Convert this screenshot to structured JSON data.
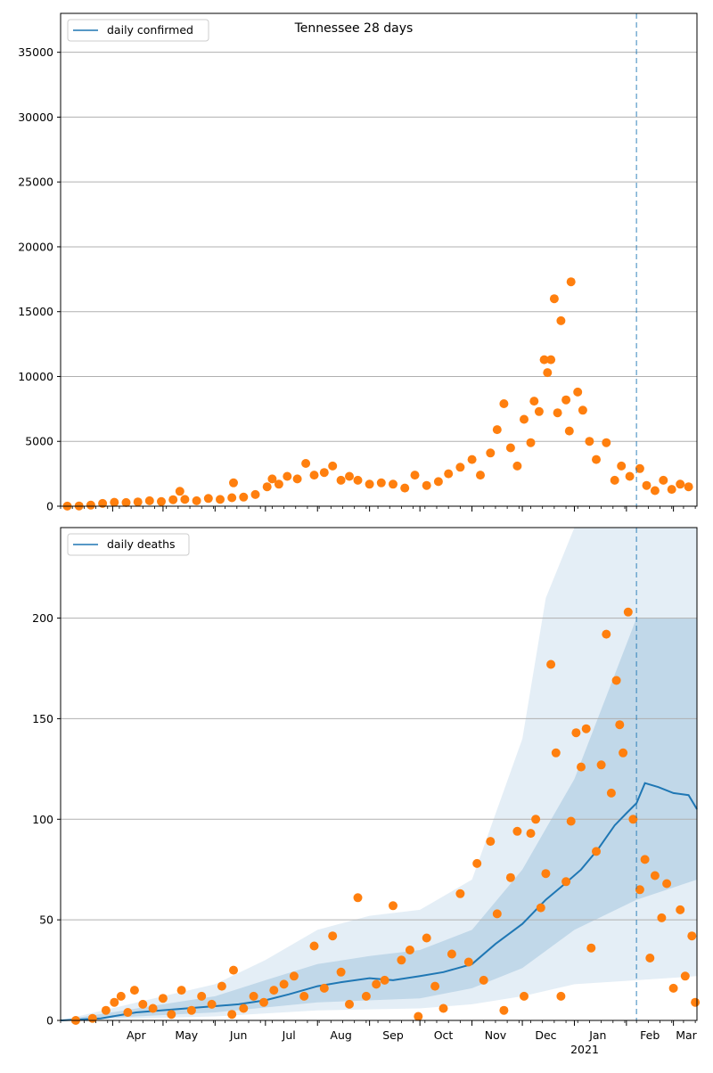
{
  "chart_data": [
    {
      "type": "scatter",
      "title": "Tennessee 28 days",
      "xlabel": "",
      "ylabel": "",
      "x_range": [
        "2020-03-01",
        "2021-03-15"
      ],
      "ylim": [
        0,
        38000
      ],
      "yticks": [
        0,
        5000,
        10000,
        15000,
        20000,
        25000,
        30000,
        35000
      ],
      "grid": "y",
      "legend": {
        "placement": "top-left",
        "label": "daily confirmed"
      },
      "divider_date": "2021-02-07",
      "colors": {
        "model": "#1f77b4",
        "observed": "#ff7f0e",
        "grid": "#b0b0b0"
      },
      "series": [
        {
          "name": "daily confirmed",
          "kind": "observed-points",
          "points": [
            [
              "2020-03-05",
              5
            ],
            [
              "2020-03-12",
              20
            ],
            [
              "2020-03-19",
              80
            ],
            [
              "2020-03-26",
              210
            ],
            [
              "2020-04-02",
              300
            ],
            [
              "2020-04-09",
              280
            ],
            [
              "2020-04-16",
              330
            ],
            [
              "2020-04-23",
              420
            ],
            [
              "2020-04-30",
              360
            ],
            [
              "2020-05-07",
              500
            ],
            [
              "2020-05-11",
              1150
            ],
            [
              "2020-05-14",
              520
            ],
            [
              "2020-05-21",
              420
            ],
            [
              "2020-05-28",
              600
            ],
            [
              "2020-06-04",
              520
            ],
            [
              "2020-06-11",
              650
            ],
            [
              "2020-06-12",
              1800
            ],
            [
              "2020-06-18",
              700
            ],
            [
              "2020-06-25",
              900
            ],
            [
              "2020-07-02",
              1500
            ],
            [
              "2020-07-05",
              2100
            ],
            [
              "2020-07-09",
              1700
            ],
            [
              "2020-07-14",
              2300
            ],
            [
              "2020-07-20",
              2100
            ],
            [
              "2020-07-25",
              3300
            ],
            [
              "2020-07-30",
              2400
            ],
            [
              "2020-08-05",
              2600
            ],
            [
              "2020-08-10",
              3100
            ],
            [
              "2020-08-15",
              2000
            ],
            [
              "2020-08-20",
              2300
            ],
            [
              "2020-08-25",
              2000
            ],
            [
              "2020-09-01",
              1700
            ],
            [
              "2020-09-08",
              1800
            ],
            [
              "2020-09-15",
              1700
            ],
            [
              "2020-09-22",
              1400
            ],
            [
              "2020-09-28",
              2400
            ],
            [
              "2020-10-05",
              1600
            ],
            [
              "2020-10-12",
              1900
            ],
            [
              "2020-10-18",
              2500
            ],
            [
              "2020-10-25",
              3000
            ],
            [
              "2020-11-01",
              3600
            ],
            [
              "2020-11-06",
              2400
            ],
            [
              "2020-11-12",
              4100
            ],
            [
              "2020-11-16",
              5900
            ],
            [
              "2020-11-20",
              7900
            ],
            [
              "2020-11-24",
              4500
            ],
            [
              "2020-11-28",
              3100
            ],
            [
              "2020-12-02",
              6700
            ],
            [
              "2020-12-06",
              4900
            ],
            [
              "2020-12-08",
              8100
            ],
            [
              "2020-12-11",
              7300
            ],
            [
              "2020-12-14",
              11300
            ],
            [
              "2020-12-16",
              10300
            ],
            [
              "2020-12-18",
              11300
            ],
            [
              "2020-12-20",
              16000
            ],
            [
              "2020-12-22",
              7200
            ],
            [
              "2020-12-24",
              14300
            ],
            [
              "2020-12-27",
              8200
            ],
            [
              "2020-12-29",
              5800
            ],
            [
              "2020-12-30",
              17300
            ],
            [
              "2021-01-03",
              8800
            ],
            [
              "2021-01-06",
              7400
            ],
            [
              "2021-01-10",
              5000
            ],
            [
              "2021-01-14",
              3600
            ],
            [
              "2021-01-20",
              4900
            ],
            [
              "2021-01-25",
              2000
            ],
            [
              "2021-01-29",
              3100
            ],
            [
              "2021-02-03",
              2300
            ],
            [
              "2021-02-09",
              2900
            ],
            [
              "2021-02-13",
              1600
            ],
            [
              "2021-02-18",
              1200
            ],
            [
              "2021-02-23",
              2000
            ],
            [
              "2021-02-28",
              1300
            ],
            [
              "2021-03-05",
              1700
            ],
            [
              "2021-03-10",
              1500
            ]
          ]
        }
      ]
    },
    {
      "type": "line",
      "title": "",
      "xlabel": "",
      "ylabel": "",
      "x_range": [
        "2020-03-01",
        "2021-03-15"
      ],
      "ylim": [
        0,
        245
      ],
      "yticks": [
        0,
        50,
        100,
        150,
        200
      ],
      "xticks": [
        "Apr",
        "May",
        "Jun",
        "Jul",
        "Aug",
        "Sep",
        "Oct",
        "Nov",
        "Dec",
        "Jan",
        "Feb",
        "Mar"
      ],
      "x_sublabel": "2021",
      "grid": "y",
      "legend": {
        "placement": "top-left",
        "label": "daily deaths"
      },
      "divider_date": "2021-02-07",
      "colors": {
        "model": "#1f77b4",
        "observed": "#ff7f0e",
        "band": "#1f77b4",
        "grid": "#b0b0b0"
      },
      "series": [
        {
          "name": "daily deaths",
          "kind": "model-line",
          "points": [
            [
              "2020-03-01",
              0
            ],
            [
              "2020-03-25",
              1
            ],
            [
              "2020-04-15",
              4
            ],
            [
              "2020-05-15",
              6
            ],
            [
              "2020-06-15",
              8
            ],
            [
              "2020-07-01",
              10
            ],
            [
              "2020-07-15",
              13
            ],
            [
              "2020-08-01",
              17
            ],
            [
              "2020-08-15",
              19
            ],
            [
              "2020-09-01",
              21
            ],
            [
              "2020-09-15",
              20
            ],
            [
              "2020-10-01",
              22
            ],
            [
              "2020-10-15",
              24
            ],
            [
              "2020-11-01",
              28
            ],
            [
              "2020-11-15",
              38
            ],
            [
              "2020-12-01",
              48
            ],
            [
              "2020-12-15",
              60
            ],
            [
              "2020-12-25",
              67
            ],
            [
              "2021-01-05",
              75
            ],
            [
              "2021-01-15",
              85
            ],
            [
              "2021-01-25",
              97
            ],
            [
              "2021-02-01",
              103
            ],
            [
              "2021-02-07",
              108
            ],
            [
              "2021-02-12",
              118
            ],
            [
              "2021-02-20",
              116
            ],
            [
              "2021-03-01",
              113
            ],
            [
              "2021-03-10",
              112
            ],
            [
              "2021-03-15",
              105
            ]
          ]
        },
        {
          "name": "",
          "kind": "band-outer",
          "lower": [
            [
              "2020-03-01",
              0
            ],
            [
              "2020-06-01",
              2
            ],
            [
              "2020-08-01",
              5
            ],
            [
              "2020-10-01",
              6
            ],
            [
              "2020-11-01",
              8
            ],
            [
              "2020-12-01",
              12
            ],
            [
              "2021-01-01",
              18
            ],
            [
              "2021-02-07",
              20
            ],
            [
              "2021-03-15",
              22
            ]
          ],
          "upper": [
            [
              "2020-03-01",
              0
            ],
            [
              "2020-05-01",
              12
            ],
            [
              "2020-06-01",
              18
            ],
            [
              "2020-07-01",
              30
            ],
            [
              "2020-08-01",
              45
            ],
            [
              "2020-09-01",
              52
            ],
            [
              "2020-10-01",
              55
            ],
            [
              "2020-11-01",
              70
            ],
            [
              "2020-12-01",
              140
            ],
            [
              "2020-12-15",
              210
            ],
            [
              "2021-01-01",
              250
            ],
            [
              "2021-02-07",
              250
            ],
            [
              "2021-03-15",
              250
            ]
          ]
        },
        {
          "name": "",
          "kind": "band-inner",
          "lower": [
            [
              "2020-03-01",
              0
            ],
            [
              "2020-06-01",
              4
            ],
            [
              "2020-08-01",
              9
            ],
            [
              "2020-10-01",
              11
            ],
            [
              "2020-11-01",
              16
            ],
            [
              "2020-12-01",
              26
            ],
            [
              "2021-01-01",
              45
            ],
            [
              "2021-02-07",
              60
            ],
            [
              "2021-03-15",
              70
            ]
          ],
          "upper": [
            [
              "2020-03-01",
              0
            ],
            [
              "2020-05-01",
              8
            ],
            [
              "2020-06-01",
              12
            ],
            [
              "2020-07-01",
              20
            ],
            [
              "2020-08-01",
              28
            ],
            [
              "2020-09-01",
              32
            ],
            [
              "2020-10-01",
              35
            ],
            [
              "2020-11-01",
              45
            ],
            [
              "2020-12-01",
              75
            ],
            [
              "2021-01-01",
              120
            ],
            [
              "2021-02-07",
              200
            ],
            [
              "2021-03-15",
              200
            ]
          ]
        },
        {
          "name": "",
          "kind": "observed-points",
          "points": [
            [
              "2020-03-10",
              0
            ],
            [
              "2020-03-20",
              1
            ],
            [
              "2020-03-28",
              5
            ],
            [
              "2020-04-02",
              9
            ],
            [
              "2020-04-06",
              12
            ],
            [
              "2020-04-10",
              4
            ],
            [
              "2020-04-14",
              15
            ],
            [
              "2020-04-19",
              8
            ],
            [
              "2020-04-25",
              6
            ],
            [
              "2020-05-01",
              11
            ],
            [
              "2020-05-06",
              3
            ],
            [
              "2020-05-12",
              15
            ],
            [
              "2020-05-18",
              5
            ],
            [
              "2020-05-24",
              12
            ],
            [
              "2020-05-30",
              8
            ],
            [
              "2020-06-05",
              17
            ],
            [
              "2020-06-11",
              3
            ],
            [
              "2020-06-12",
              25
            ],
            [
              "2020-06-18",
              6
            ],
            [
              "2020-06-24",
              12
            ],
            [
              "2020-06-30",
              9
            ],
            [
              "2020-07-06",
              15
            ],
            [
              "2020-07-12",
              18
            ],
            [
              "2020-07-18",
              22
            ],
            [
              "2020-07-24",
              12
            ],
            [
              "2020-07-30",
              37
            ],
            [
              "2020-08-05",
              16
            ],
            [
              "2020-08-10",
              42
            ],
            [
              "2020-08-15",
              24
            ],
            [
              "2020-08-20",
              8
            ],
            [
              "2020-08-25",
              61
            ],
            [
              "2020-08-30",
              12
            ],
            [
              "2020-09-05",
              18
            ],
            [
              "2020-09-10",
              20
            ],
            [
              "2020-09-15",
              57
            ],
            [
              "2020-09-20",
              30
            ],
            [
              "2020-09-25",
              35
            ],
            [
              "2020-09-30",
              2
            ],
            [
              "2020-10-05",
              41
            ],
            [
              "2020-10-10",
              17
            ],
            [
              "2020-10-15",
              6
            ],
            [
              "2020-10-20",
              33
            ],
            [
              "2020-10-25",
              63
            ],
            [
              "2020-10-30",
              29
            ],
            [
              "2020-11-04",
              78
            ],
            [
              "2020-11-08",
              20
            ],
            [
              "2020-11-12",
              89
            ],
            [
              "2020-11-16",
              53
            ],
            [
              "2020-11-20",
              5
            ],
            [
              "2020-11-24",
              71
            ],
            [
              "2020-11-28",
              94
            ],
            [
              "2020-12-02",
              12
            ],
            [
              "2020-12-06",
              93
            ],
            [
              "2020-12-09",
              100
            ],
            [
              "2020-12-12",
              56
            ],
            [
              "2020-12-15",
              73
            ],
            [
              "2020-12-18",
              177
            ],
            [
              "2020-12-21",
              133
            ],
            [
              "2020-12-24",
              12
            ],
            [
              "2020-12-27",
              69
            ],
            [
              "2020-12-30",
              99
            ],
            [
              "2021-01-02",
              143
            ],
            [
              "2021-01-05",
              126
            ],
            [
              "2021-01-08",
              145
            ],
            [
              "2021-01-11",
              36
            ],
            [
              "2021-01-14",
              84
            ],
            [
              "2021-01-17",
              127
            ],
            [
              "2021-01-20",
              192
            ],
            [
              "2021-01-23",
              113
            ],
            [
              "2021-01-26",
              169
            ],
            [
              "2021-01-28",
              147
            ],
            [
              "2021-01-30",
              133
            ],
            [
              "2021-02-02",
              203
            ],
            [
              "2021-02-05",
              100
            ],
            [
              "2021-02-09",
              65
            ],
            [
              "2021-02-12",
              80
            ],
            [
              "2021-02-15",
              31
            ],
            [
              "2021-02-18",
              72
            ],
            [
              "2021-02-22",
              51
            ],
            [
              "2021-02-25",
              68
            ],
            [
              "2021-03-01",
              16
            ],
            [
              "2021-03-05",
              55
            ],
            [
              "2021-03-08",
              22
            ],
            [
              "2021-03-12",
              42
            ],
            [
              "2021-03-14",
              9
            ]
          ]
        }
      ]
    }
  ]
}
